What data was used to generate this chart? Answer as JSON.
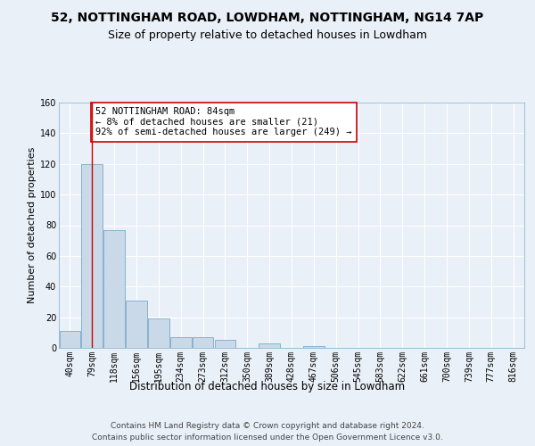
{
  "title1": "52, NOTTINGHAM ROAD, LOWDHAM, NOTTINGHAM, NG14 7AP",
  "title2": "Size of property relative to detached houses in Lowdham",
  "xlabel": "Distribution of detached houses by size in Lowdham",
  "ylabel": "Number of detached properties",
  "footnote1": "Contains HM Land Registry data © Crown copyright and database right 2024.",
  "footnote2": "Contains public sector information licensed under the Open Government Licence v3.0.",
  "bar_labels": [
    "40sqm",
    "79sqm",
    "118sqm",
    "156sqm",
    "195sqm",
    "234sqm",
    "273sqm",
    "312sqm",
    "350sqm",
    "389sqm",
    "428sqm",
    "467sqm",
    "506sqm",
    "545sqm",
    "583sqm",
    "622sqm",
    "661sqm",
    "700sqm",
    "739sqm",
    "777sqm",
    "816sqm"
  ],
  "bar_values": [
    11,
    120,
    77,
    31,
    19,
    7,
    7,
    5,
    0,
    3,
    0,
    1,
    0,
    0,
    0,
    0,
    0,
    0,
    0,
    0,
    0
  ],
  "bar_color": "#c9d9e8",
  "bar_edgecolor": "#7aaac8",
  "vline_x": 1.0,
  "vline_color": "#cc0000",
  "annotation_text": "52 NOTTINGHAM ROAD: 84sqm\n← 8% of detached houses are smaller (21)\n92% of semi-detached houses are larger (249) →",
  "annotation_box_edgecolor": "#cc0000",
  "annotation_box_facecolor": "#ffffff",
  "ylim": [
    0,
    160
  ],
  "yticks": [
    0,
    20,
    40,
    60,
    80,
    100,
    120,
    140,
    160
  ],
  "background_color": "#eaf0f8",
  "plot_background": "#eaf0f8",
  "grid_color": "#ffffff",
  "title1_fontsize": 10,
  "title2_fontsize": 9,
  "xlabel_fontsize": 8.5,
  "ylabel_fontsize": 8,
  "tick_fontsize": 7,
  "footnote_fontsize": 6.5,
  "annot_fontsize": 7.5
}
